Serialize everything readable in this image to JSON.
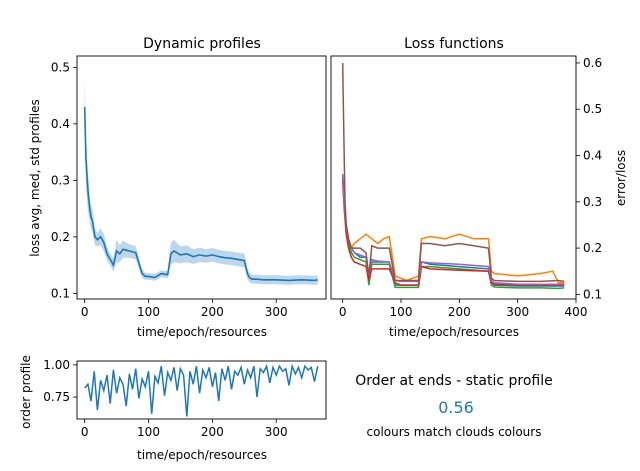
{
  "chart_data": [
    {
      "type": "line",
      "title": "Dynamic profiles",
      "xlabel": "time/epoch/resources",
      "ylabel": "loss avg, med, std profiles",
      "xlim": [
        -12,
        378
      ],
      "ylim": [
        0.09,
        0.52
      ],
      "xticks": [
        0,
        100,
        200,
        300
      ],
      "yticks": [
        0.1,
        0.2,
        0.3,
        0.4,
        0.5
      ],
      "colors": {
        "line": "#1f77b4",
        "band": "#a6c8e6"
      },
      "series": [
        {
          "x": [
            0,
            2,
            4,
            6,
            8,
            10,
            12,
            14,
            16,
            20,
            25,
            30,
            35,
            40,
            45,
            50,
            55,
            60,
            70,
            80,
            90,
            95,
            100,
            110,
            120,
            130,
            135,
            140,
            150,
            160,
            170,
            180,
            190,
            200,
            210,
            220,
            230,
            240,
            250,
            255,
            258,
            262,
            270,
            280,
            300,
            320,
            340,
            360,
            365
          ],
          "values": [
            0.43,
            0.34,
            0.3,
            0.27,
            0.25,
            0.235,
            0.23,
            0.215,
            0.2,
            0.195,
            0.2,
            0.19,
            0.17,
            0.16,
            0.15,
            0.175,
            0.17,
            0.178,
            0.175,
            0.172,
            0.135,
            0.13,
            0.13,
            0.128,
            0.135,
            0.133,
            0.17,
            0.175,
            0.168,
            0.17,
            0.165,
            0.168,
            0.166,
            0.168,
            0.165,
            0.163,
            0.162,
            0.16,
            0.158,
            0.135,
            0.128,
            0.125,
            0.125,
            0.124,
            0.124,
            0.123,
            0.124,
            0.123,
            0.124
          ],
          "std": [
            0.05,
            0.045,
            0.04,
            0.03,
            0.025,
            0.02,
            0.02,
            0.018,
            0.015,
            0.012,
            0.015,
            0.015,
            0.012,
            0.01,
            0.012,
            0.02,
            0.015,
            0.015,
            0.012,
            0.012,
            0.008,
            0.006,
            0.006,
            0.006,
            0.006,
            0.006,
            0.02,
            0.02,
            0.015,
            0.015,
            0.013,
            0.013,
            0.012,
            0.012,
            0.012,
            0.012,
            0.012,
            0.012,
            0.012,
            0.01,
            0.008,
            0.008,
            0.008,
            0.008,
            0.008,
            0.008,
            0.008,
            0.008,
            0.008
          ]
        }
      ]
    },
    {
      "type": "line",
      "title": "Loss functions",
      "xlabel": "time/epoch/resources",
      "ylabel": "error/loss",
      "xlim": [
        -20,
        400
      ],
      "ylim": [
        0.09,
        0.615
      ],
      "xticks": [
        0,
        100,
        200,
        300,
        400
      ],
      "yticks": [
        0.1,
        0.2,
        0.3,
        0.4,
        0.5,
        0.6
      ],
      "series": [
        {
          "color": "#1f77b4",
          "x": [
            0,
            3,
            6,
            10,
            15,
            20,
            30,
            40,
            45,
            50,
            60,
            80,
            90,
            100,
            120,
            130,
            135,
            150,
            200,
            250,
            255,
            260,
            300,
            340,
            370,
            380
          ],
          "values": [
            0.36,
            0.3,
            0.25,
            0.22,
            0.2,
            0.19,
            0.18,
            0.18,
            0.13,
            0.17,
            0.17,
            0.17,
            0.12,
            0.12,
            0.12,
            0.12,
            0.17,
            0.165,
            0.16,
            0.155,
            0.125,
            0.12,
            0.118,
            0.118,
            0.118,
            0.118
          ]
        },
        {
          "color": "#ff7f0e",
          "x": [
            0,
            3,
            6,
            10,
            15,
            20,
            30,
            40,
            50,
            60,
            70,
            80,
            90,
            100,
            110,
            120,
            130,
            135,
            150,
            175,
            200,
            225,
            250,
            255,
            260,
            300,
            340,
            360,
            370,
            380
          ],
          "values": [
            0.34,
            0.28,
            0.24,
            0.21,
            0.2,
            0.21,
            0.22,
            0.23,
            0.22,
            0.21,
            0.22,
            0.225,
            0.14,
            0.135,
            0.13,
            0.135,
            0.14,
            0.22,
            0.225,
            0.22,
            0.23,
            0.22,
            0.22,
            0.15,
            0.145,
            0.14,
            0.145,
            0.15,
            0.125,
            0.125
          ]
        },
        {
          "color": "#2ca02c",
          "x": [
            0,
            3,
            6,
            10,
            15,
            20,
            30,
            40,
            45,
            50,
            60,
            80,
            90,
            100,
            120,
            130,
            135,
            150,
            200,
            250,
            255,
            260,
            300,
            340,
            370,
            380
          ],
          "values": [
            0.35,
            0.29,
            0.24,
            0.21,
            0.19,
            0.18,
            0.175,
            0.17,
            0.12,
            0.165,
            0.165,
            0.165,
            0.115,
            0.115,
            0.115,
            0.115,
            0.16,
            0.16,
            0.155,
            0.15,
            0.12,
            0.116,
            0.114,
            0.114,
            0.113,
            0.114
          ]
        },
        {
          "color": "#d62728",
          "x": [
            0,
            3,
            6,
            10,
            15,
            20,
            30,
            40,
            45,
            50,
            60,
            80,
            90,
            100,
            120,
            130,
            135,
            150,
            200,
            250,
            255,
            260,
            300,
            340,
            370,
            380
          ],
          "values": [
            0.35,
            0.28,
            0.23,
            0.2,
            0.18,
            0.17,
            0.165,
            0.16,
            0.13,
            0.155,
            0.155,
            0.155,
            0.125,
            0.12,
            0.12,
            0.12,
            0.16,
            0.155,
            0.152,
            0.15,
            0.125,
            0.122,
            0.12,
            0.12,
            0.12,
            0.12
          ]
        },
        {
          "color": "#9467bd",
          "x": [
            0,
            3,
            6,
            10,
            15,
            20,
            30,
            40,
            45,
            50,
            60,
            80,
            90,
            100,
            120,
            130,
            135,
            150,
            200,
            250,
            255,
            260,
            300,
            340,
            370,
            380
          ],
          "values": [
            0.36,
            0.29,
            0.25,
            0.22,
            0.2,
            0.19,
            0.185,
            0.18,
            0.14,
            0.175,
            0.172,
            0.17,
            0.13,
            0.128,
            0.128,
            0.128,
            0.17,
            0.168,
            0.165,
            0.16,
            0.13,
            0.125,
            0.122,
            0.122,
            0.122,
            0.122
          ]
        },
        {
          "color": "#8c564b",
          "x": [
            0,
            2,
            4,
            6,
            10,
            15,
            20,
            30,
            40,
            45,
            50,
            60,
            80,
            90,
            100,
            120,
            130,
            135,
            150,
            175,
            200,
            225,
            250,
            255,
            260,
            300,
            340,
            370,
            380
          ],
          "values": [
            0.6,
            0.45,
            0.3,
            0.25,
            0.22,
            0.2,
            0.2,
            0.2,
            0.19,
            0.14,
            0.205,
            0.2,
            0.2,
            0.13,
            0.13,
            0.13,
            0.13,
            0.21,
            0.21,
            0.205,
            0.21,
            0.205,
            0.2,
            0.135,
            0.13,
            0.128,
            0.128,
            0.13,
            0.128
          ]
        }
      ]
    },
    {
      "type": "line",
      "title": "",
      "xlabel": "time/epoch/resources",
      "ylabel": "order profile",
      "xlim": [
        -12,
        378
      ],
      "ylim": [
        0.58,
        1.03
      ],
      "xticks": [
        0,
        100,
        200,
        300
      ],
      "yticks": [
        0.75,
        1.0
      ],
      "ytick_labels": [
        "0.75",
        "1.00"
      ],
      "colors": {
        "line": "#1f77b4"
      },
      "series": [
        {
          "x_start": 0,
          "x_step": 5,
          "values": [
            0.82,
            0.85,
            0.72,
            0.95,
            0.65,
            0.88,
            0.8,
            0.92,
            0.7,
            0.96,
            0.78,
            0.9,
            0.85,
            0.68,
            0.93,
            0.81,
            0.97,
            0.74,
            0.89,
            0.83,
            0.95,
            0.62,
            0.91,
            0.86,
            0.99,
            0.76,
            0.94,
            0.88,
            0.98,
            0.8,
            0.97,
            0.92,
            0.6,
            0.95,
            0.85,
            0.99,
            0.78,
            0.96,
            0.9,
            0.98,
            0.83,
            0.94,
            0.72,
            0.97,
            0.88,
            0.99,
            0.81,
            0.95,
            0.92,
            0.98,
            0.85,
            0.96,
            0.9,
            0.99,
            0.75,
            0.97,
            0.94,
            0.99,
            0.86,
            0.98,
            0.92,
            0.99,
            0.95,
            0.97,
            0.84,
            0.99,
            0.93,
            0.98,
            0.9,
            0.99,
            0.96,
            0.98,
            0.87,
            0.99
          ]
        }
      ]
    }
  ],
  "static_profile": {
    "title": "Order at ends - static profile",
    "value": "0.56",
    "note": "colours match clouds colours",
    "value_color": "#1f77b4"
  }
}
